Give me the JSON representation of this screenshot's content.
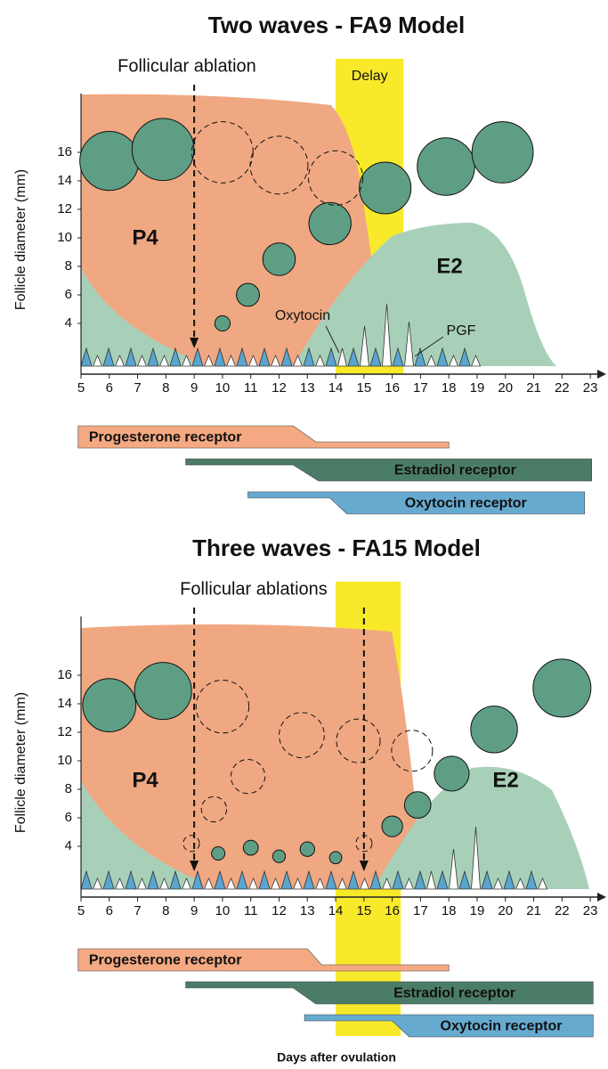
{
  "chart_data": [
    {
      "type": "scatter",
      "title": "Two waves - FA9 Model",
      "annotation": "Follicular ablation",
      "ylabel": "Follicle diameter (mm)",
      "xlim": [
        5,
        23.5
      ],
      "xticks": [
        5,
        6,
        7,
        8,
        9,
        10,
        11,
        12,
        13,
        14,
        15,
        16,
        17,
        18,
        19,
        20,
        21,
        22,
        23
      ],
      "ylim": [
        1,
        20
      ],
      "yticks": [
        4,
        6,
        8,
        10,
        12,
        14,
        16
      ],
      "delay_label": "Delay",
      "delay": [
        14,
        16.4
      ],
      "ablations": [
        9
      ],
      "hormones": [
        "P4",
        "E2"
      ],
      "pulse_labels": [
        "Oxytocin",
        "PGF"
      ],
      "series": [
        {
          "color": "#5e9e84",
          "dashed": false,
          "x": [
            6,
            7.9,
            10,
            10.9,
            12,
            13.8,
            15.75,
            17.9,
            19.9
          ],
          "values": [
            15.4,
            16.2,
            4,
            6,
            8.5,
            11,
            13.5,
            15,
            16
          ]
        },
        {
          "color": "none",
          "dashed": true,
          "x": [
            10,
            12,
            14
          ],
          "values": [
            16,
            15.1,
            14.2
          ]
        }
      ],
      "receptors": [
        {
          "name": "Progesterone receptor",
          "color": "#f4a982",
          "high_first": true,
          "days": [
            4.9,
            12.5,
            13.3,
            18
          ]
        },
        {
          "name": "Estradiol receptor",
          "color": "#4b7c68",
          "high_first": false,
          "days": [
            8.7,
            12.5,
            13.4,
            23.05
          ]
        },
        {
          "name": "Oxytocin receptor",
          "color": "#67aad0",
          "high_first": false,
          "days": [
            10.9,
            13.8,
            14.4,
            22.8
          ]
        }
      ]
    },
    {
      "type": "scatter",
      "title": "Three waves - FA15 Model",
      "annotation": "Follicular ablations",
      "ylabel": "Follicle diameter (mm)",
      "xlabel": "Days after ovulation",
      "xlim": [
        5,
        23.5
      ],
      "xticks": [
        5,
        6,
        7,
        8,
        9,
        10,
        11,
        12,
        13,
        14,
        15,
        16,
        17,
        18,
        19,
        20,
        21,
        22,
        23
      ],
      "ylim": [
        1,
        20
      ],
      "yticks": [
        4,
        6,
        8,
        10,
        12,
        14,
        16
      ],
      "delay": [
        14,
        16.3
      ],
      "ablations": [
        9,
        15
      ],
      "hormones": [
        "P4",
        "E2"
      ],
      "series": [
        {
          "color": "#5e9e84",
          "dashed": false,
          "x": [
            6,
            7.9,
            9.85,
            11,
            12,
            13,
            14,
            16,
            16.9,
            18.1,
            19.6,
            22
          ],
          "values": [
            13.9,
            14.9,
            3.5,
            3.9,
            3.3,
            3.8,
            3.2,
            5.4,
            6.9,
            9.1,
            12.2,
            15.1
          ]
        },
        {
          "color": "none",
          "dashed": true,
          "x": [
            8.9,
            9.7,
            10.9,
            10,
            12.8,
            14.8,
            16.7,
            15
          ],
          "values": [
            4.2,
            6.6,
            8.9,
            13.8,
            11.8,
            11.4,
            10.7,
            4.2
          ]
        }
      ],
      "receptors": [
        {
          "name": "Progesterone receptor",
          "color": "#f4a982",
          "high_first": true,
          "days": [
            4.9,
            13,
            13.5,
            18
          ]
        },
        {
          "name": "Estradiol receptor",
          "color": "#4b7c68",
          "high_first": false,
          "days": [
            8.7,
            12.5,
            13.3,
            23.1
          ]
        },
        {
          "name": "Oxytocin receptor",
          "color": "#67aad0",
          "high_first": false,
          "days": [
            12.9,
            16,
            16.6,
            23.1
          ]
        }
      ]
    }
  ]
}
